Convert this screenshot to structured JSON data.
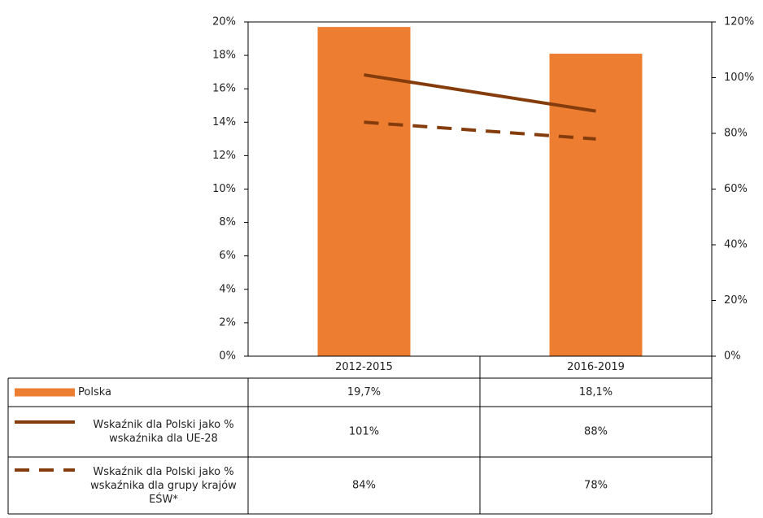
{
  "chart_data": {
    "type": "bar",
    "categories": [
      "2012-2015",
      "2016-2019"
    ],
    "series": [
      {
        "name": "Polska",
        "type": "bar",
        "color": "#ed7d31",
        "values": [
          19.7,
          18.1
        ],
        "value_labels": [
          "19,7%",
          "18,1%"
        ]
      },
      {
        "name": "Wskaźnik dla Polski jako % wskaźnika dla UE-28",
        "type": "line",
        "axis": "y2",
        "color": "#843c0c",
        "dash": false,
        "values": [
          101,
          88
        ],
        "value_labels": [
          "101%",
          "88%"
        ]
      },
      {
        "name": "Wskaźnik dla Polski jako % wskaźnika dla grupy krajów EŚW*",
        "type": "line",
        "axis": "y2",
        "color": "#843c0c",
        "dash": true,
        "values": [
          84,
          78
        ],
        "value_labels": [
          "84%",
          "78%"
        ]
      }
    ],
    "ylim": [
      0,
      20
    ],
    "yticks": [
      {
        "value": 0,
        "label": "0%"
      },
      {
        "value": 2,
        "label": "2%"
      },
      {
        "value": 4,
        "label": "4%"
      },
      {
        "value": 6,
        "label": "6%"
      },
      {
        "value": 8,
        "label": "8%"
      },
      {
        "value": 10,
        "label": "10%"
      },
      {
        "value": 12,
        "label": "12%"
      },
      {
        "value": 14,
        "label": "14%"
      },
      {
        "value": 16,
        "label": "16%"
      },
      {
        "value": 18,
        "label": "18%"
      },
      {
        "value": 20,
        "label": "20%"
      }
    ],
    "y2lim": [
      0,
      120
    ],
    "y2ticks": [
      {
        "value": 0,
        "label": "0%"
      },
      {
        "value": 20,
        "label": "20%"
      },
      {
        "value": 40,
        "label": "40%"
      },
      {
        "value": 60,
        "label": "60%"
      },
      {
        "value": 80,
        "label": "80%"
      },
      {
        "value": 100,
        "label": "100%"
      },
      {
        "value": 120,
        "label": "120%"
      }
    ],
    "grid": false
  }
}
